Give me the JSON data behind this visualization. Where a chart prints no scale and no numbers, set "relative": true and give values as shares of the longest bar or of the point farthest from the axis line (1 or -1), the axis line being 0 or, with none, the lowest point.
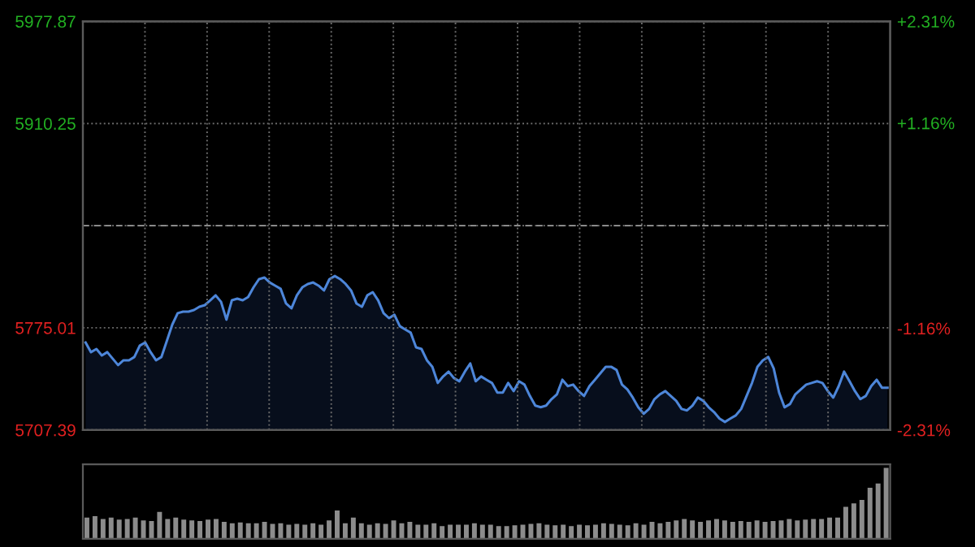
{
  "chart_data": [
    {
      "type": "area",
      "categories": [
        null,
        null,
        null,
        null,
        null,
        null,
        null,
        null,
        null,
        null,
        null,
        null,
        null,
        null,
        null,
        null,
        null,
        null,
        null,
        null,
        null,
        null,
        null,
        null,
        null,
        null,
        null,
        null,
        null,
        null,
        null,
        null,
        null,
        null,
        null,
        null,
        null,
        null,
        null,
        null,
        null,
        null,
        null,
        null,
        null,
        null,
        null,
        null,
        null,
        null,
        null,
        null,
        null,
        null,
        null,
        null,
        null,
        null,
        null,
        null,
        null,
        null,
        null,
        null,
        null,
        null,
        null,
        null,
        null,
        null,
        null,
        null,
        null,
        null,
        null,
        null,
        null,
        null,
        null,
        null,
        null,
        null,
        null,
        null,
        null,
        null,
        null,
        null,
        null,
        null,
        null,
        null,
        null,
        null,
        null,
        null,
        null,
        null,
        null,
        null,
        null,
        null,
        null,
        null,
        null,
        null,
        null,
        null,
        null,
        null,
        null,
        null,
        null,
        null,
        null,
        null,
        null,
        null,
        null,
        null,
        null,
        null,
        null,
        null,
        null,
        null,
        null,
        null,
        null,
        null,
        null,
        null,
        null,
        null,
        null,
        null,
        null,
        null,
        null,
        null,
        null,
        null,
        null,
        null,
        null,
        null,
        null,
        null,
        null
      ],
      "series": [
        {
          "color": "#4d86d9",
          "values": [
            5765.3,
            5758.9,
            5761.0,
            5756.7,
            5758.9,
            5754.6,
            5750.3,
            5753.5,
            5753.5,
            5755.7,
            5763.2,
            5765.3,
            5758.9,
            5753.5,
            5755.7,
            5766.4,
            5777.1,
            5784.7,
            5785.7,
            5785.7,
            5786.8,
            5788.9,
            5790.0,
            5793.2,
            5796.5,
            5792.2,
            5780.4,
            5793.2,
            5794.3,
            5793.2,
            5795.4,
            5801.8,
            5807.2,
            5808.3,
            5805.0,
            5802.9,
            5800.8,
            5791.1,
            5787.9,
            5796.5,
            5801.8,
            5804.0,
            5805.0,
            5802.9,
            5799.7,
            5807.2,
            5809.3,
            5807.2,
            5804.0,
            5799.7,
            5791.1,
            5788.9,
            5796.5,
            5798.6,
            5793.2,
            5784.7,
            5781.4,
            5783.6,
            5776.1,
            5773.9,
            5771.8,
            5762.1,
            5761.0,
            5753.5,
            5749.2,
            5738.5,
            5742.8,
            5746.0,
            5741.7,
            5739.6,
            5746.0,
            5751.4,
            5739.6,
            5742.8,
            5740.6,
            5738.5,
            5732.1,
            5732.1,
            5738.5,
            5733.1,
            5739.6,
            5737.4,
            5729.9,
            5723.5,
            5722.4,
            5723.5,
            5727.8,
            5731.0,
            5740.6,
            5736.4,
            5737.4,
            5733.1,
            5729.9,
            5736.4,
            5740.6,
            5744.9,
            5749.2,
            5749.2,
            5747.1,
            5737.4,
            5734.2,
            5728.8,
            5722.4,
            5718.1,
            5721.3,
            5727.8,
            5731.0,
            5733.1,
            5729.9,
            5726.7,
            5721.3,
            5720.3,
            5723.5,
            5728.8,
            5726.7,
            5722.4,
            5719.2,
            5714.9,
            5712.7,
            5714.9,
            5717.0,
            5721.3,
            5729.9,
            5738.5,
            5749.2,
            5753.5,
            5755.7,
            5748.2,
            5732.1,
            5722.4,
            5724.5,
            5731.0,
            5734.2,
            5737.4,
            5738.5,
            5739.6,
            5738.5,
            5733.1,
            5728.8,
            5736.4,
            5746.0,
            5739.6,
            5733.1,
            5727.8,
            5729.9,
            5736.4,
            5740.6,
            5735.3,
            5735.3
          ]
        }
      ],
      "ylim": [
        5707.39,
        5977.87
      ],
      "yticks": [
        5707.39,
        5775.01,
        {
          "value": 5842.63,
          "label": null
        },
        5910.25,
        5977.87
      ],
      "y2lim": [
        -2.31,
        2.31
      ],
      "y2ticks": [
        {
          "value": -2.31,
          "label": "-2.31%"
        },
        {
          "value": -1.16,
          "label": "-1.16%"
        },
        {
          "value": 1.16,
          "label": "+1.16%"
        },
        {
          "value": 2.31,
          "label": "+2.31%"
        }
      ],
      "ref_lines": [
        {
          "axis": "y",
          "value": 5842.63,
          "line_style": "dashed",
          "color": "#8a8a8a"
        }
      ],
      "grid": true,
      "line_style": "solid",
      "tick_labels": "y"
    },
    {
      "type": "bar",
      "relative": true,
      "color": "#8c8c8c",
      "categories": [
        null,
        null,
        null,
        null,
        null,
        null,
        null,
        null,
        null,
        null,
        null,
        null,
        null,
        null,
        null,
        null,
        null,
        null,
        null,
        null,
        null,
        null,
        null,
        null,
        null,
        null,
        null,
        null,
        null,
        null,
        null,
        null,
        null,
        null,
        null,
        null,
        null,
        null,
        null,
        null,
        null,
        null,
        null,
        null,
        null,
        null,
        null,
        null,
        null,
        null,
        null,
        null,
        null,
        null,
        null,
        null,
        null,
        null,
        null,
        null,
        null,
        null,
        null,
        null,
        null,
        null,
        null,
        null,
        null,
        null,
        null,
        null,
        null,
        null,
        null,
        null,
        null,
        null,
        null,
        null,
        null,
        null,
        null,
        null,
        null,
        null,
        null,
        null,
        null,
        null,
        null,
        null,
        null,
        null,
        null,
        null,
        null,
        null,
        null,
        null
      ],
      "values": [
        0.3,
        0.32,
        0.28,
        0.3,
        0.27,
        0.28,
        0.3,
        0.26,
        0.25,
        0.38,
        0.28,
        0.3,
        0.27,
        0.26,
        0.25,
        0.27,
        0.28,
        0.24,
        0.22,
        0.23,
        0.22,
        0.22,
        0.24,
        0.21,
        0.22,
        0.2,
        0.21,
        0.2,
        0.22,
        0.2,
        0.26,
        0.4,
        0.22,
        0.3,
        0.22,
        0.2,
        0.22,
        0.21,
        0.26,
        0.22,
        0.24,
        0.2,
        0.2,
        0.22,
        0.18,
        0.2,
        0.2,
        0.2,
        0.22,
        0.2,
        0.2,
        0.18,
        0.18,
        0.19,
        0.2,
        0.21,
        0.22,
        0.2,
        0.19,
        0.2,
        0.18,
        0.2,
        0.19,
        0.2,
        0.22,
        0.21,
        0.2,
        0.19,
        0.22,
        0.2,
        0.24,
        0.22,
        0.24,
        0.26,
        0.28,
        0.26,
        0.24,
        0.26,
        0.28,
        0.26,
        0.24,
        0.25,
        0.24,
        0.26,
        0.24,
        0.25,
        0.26,
        0.28,
        0.26,
        0.27,
        0.28,
        0.28,
        0.3,
        0.3,
        0.45,
        0.5,
        0.55,
        0.72,
        0.78,
        1.0
      ]
    }
  ]
}
